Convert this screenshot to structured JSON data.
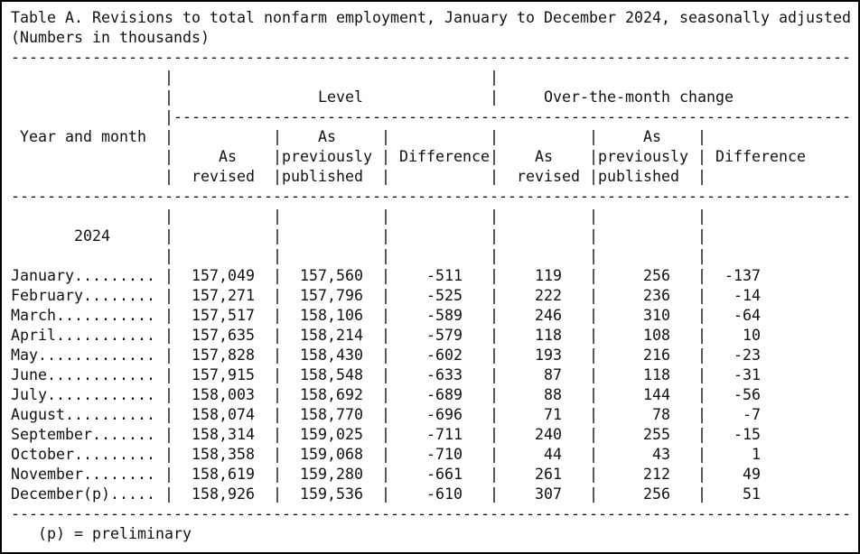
{
  "title": {
    "line1": "Table A. Revisions to total nonfarm employment, January to December 2024, seasonally adjusted",
    "line2": "(Numbers in thousands)"
  },
  "headers": {
    "year_and_month": "Year and month",
    "level_group": "Level",
    "otm_group": "Over-the-month change",
    "sub_as_revised": "As revised",
    "sub_as_previously_published": "As previously published",
    "sub_difference": "Difference"
  },
  "year_label": "2024",
  "rows": [
    {
      "month": "January.........",
      "level_revised": "157,049",
      "level_published": "157,560",
      "level_difference": "-511",
      "otm_revised": "119",
      "otm_published": "256",
      "otm_difference": "-137"
    },
    {
      "month": "February........",
      "level_revised": "157,271",
      "level_published": "157,796",
      "level_difference": "-525",
      "otm_revised": "222",
      "otm_published": "236",
      "otm_difference": "-14"
    },
    {
      "month": "March...........",
      "level_revised": "157,517",
      "level_published": "158,106",
      "level_difference": "-589",
      "otm_revised": "246",
      "otm_published": "310",
      "otm_difference": "-64"
    },
    {
      "month": "April...........",
      "level_revised": "157,635",
      "level_published": "158,214",
      "level_difference": "-579",
      "otm_revised": "118",
      "otm_published": "108",
      "otm_difference": "10"
    },
    {
      "month": "May.............",
      "level_revised": "157,828",
      "level_published": "158,430",
      "level_difference": "-602",
      "otm_revised": "193",
      "otm_published": "216",
      "otm_difference": "-23"
    },
    {
      "month": "June............",
      "level_revised": "157,915",
      "level_published": "158,548",
      "level_difference": "-633",
      "otm_revised": "87",
      "otm_published": "118",
      "otm_difference": "-31"
    },
    {
      "month": "July............",
      "level_revised": "158,003",
      "level_published": "158,692",
      "level_difference": "-689",
      "otm_revised": "88",
      "otm_published": "144",
      "otm_difference": "-56"
    },
    {
      "month": "August..........",
      "level_revised": "158,074",
      "level_published": "158,770",
      "level_difference": "-696",
      "otm_revised": "71",
      "otm_published": "78",
      "otm_difference": "-7"
    },
    {
      "month": "September.......",
      "level_revised": "158,314",
      "level_published": "159,025",
      "level_difference": "-711",
      "otm_revised": "240",
      "otm_published": "255",
      "otm_difference": "-15"
    },
    {
      "month": "October.........",
      "level_revised": "158,358",
      "level_published": "159,068",
      "level_difference": "-710",
      "otm_revised": "44",
      "otm_published": "43",
      "otm_difference": "1"
    },
    {
      "month": "November........",
      "level_revised": "158,619",
      "level_published": "159,280",
      "level_difference": "-661",
      "otm_revised": "261",
      "otm_published": "212",
      "otm_difference": "49"
    },
    {
      "month": "December(p).....",
      "level_revised": "158,926",
      "level_published": "159,536",
      "level_difference": "-610",
      "otm_revised": "307",
      "otm_published": "256",
      "otm_difference": "51"
    }
  ],
  "footnote": "(p) = preliminary",
  "text_color": "#111111",
  "background_color": "#ffffff"
}
